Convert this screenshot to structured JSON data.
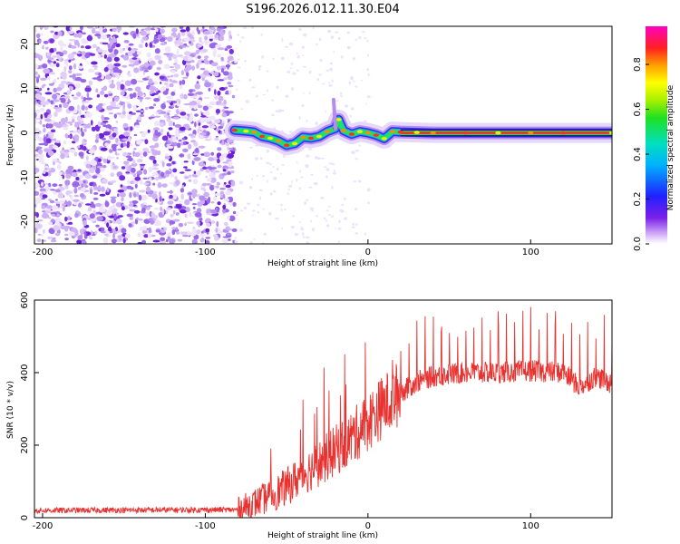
{
  "title": "S196.2026.012.11.30.E04",
  "chart_data": [
    {
      "type": "heatmap",
      "name": "spectrogram",
      "xlabel": "Height of straight line (km)",
      "ylabel": "Frequency (Hz)",
      "xlim": [
        -205,
        150
      ],
      "ylim": [
        -25,
        24
      ],
      "xticks": [
        -200,
        -100,
        0,
        100
      ],
      "yticks": [
        -20,
        -10,
        0,
        10,
        20
      ],
      "xtick_labels": [
        "-200",
        "-100",
        "0",
        "100"
      ],
      "ytick_labels": [
        "-20",
        "-10",
        "0",
        "10",
        "20"
      ],
      "noise_region_x": [
        -205,
        -82
      ],
      "signal_start_x": -82,
      "signal_track": [
        {
          "x": -82,
          "y": 0.6
        },
        {
          "x": -75,
          "y": 0.4
        },
        {
          "x": -70,
          "y": 0.2
        },
        {
          "x": -65,
          "y": -0.8
        },
        {
          "x": -60,
          "y": -1.2
        },
        {
          "x": -55,
          "y": -1.8
        },
        {
          "x": -50,
          "y": -2.8
        },
        {
          "x": -45,
          "y": -2.4
        },
        {
          "x": -40,
          "y": -1.0
        },
        {
          "x": -35,
          "y": -1.2
        },
        {
          "x": -30,
          "y": -0.8
        },
        {
          "x": -25,
          "y": 0.3
        },
        {
          "x": -20,
          "y": 1.0
        },
        {
          "x": -18,
          "y": 3.0
        },
        {
          "x": -15,
          "y": 0.5
        },
        {
          "x": -10,
          "y": -0.3
        },
        {
          "x": -5,
          "y": 0.3
        },
        {
          "x": 0,
          "y": 0.0
        },
        {
          "x": 5,
          "y": -0.5
        },
        {
          "x": 10,
          "y": -1.3
        },
        {
          "x": 15,
          "y": 0.3
        },
        {
          "x": 20,
          "y": 0.2
        },
        {
          "x": 30,
          "y": 0.1
        },
        {
          "x": 40,
          "y": 0.0
        },
        {
          "x": 60,
          "y": 0.0
        },
        {
          "x": 80,
          "y": 0.0
        },
        {
          "x": 100,
          "y": 0.0
        },
        {
          "x": 120,
          "y": 0.0
        },
        {
          "x": 150,
          "y": 0.0
        }
      ],
      "spike": {
        "x": -20,
        "y_top": 7.5
      }
    },
    {
      "type": "colorbar",
      "label": "Normalized spectral amplitude",
      "range": [
        0.0,
        0.97
      ],
      "ticks": [
        "0.0",
        "0.2",
        "0.4",
        "0.6",
        "0.8"
      ],
      "tick_values": [
        0.0,
        0.2,
        0.4,
        0.6,
        0.8
      ],
      "colormap": "rainbow"
    },
    {
      "type": "line",
      "name": "snr",
      "xlabel": "Height of straight line (km)",
      "ylabel": "SNR (10 * v/v)",
      "xlim": [
        -205,
        150
      ],
      "ylim": [
        0,
        600
      ],
      "xticks": [
        -200,
        -100,
        0,
        100
      ],
      "yticks": [
        0,
        200,
        400,
        600
      ],
      "xtick_labels": [
        "-200",
        "-100",
        "0",
        "100"
      ],
      "ytick_labels": [
        "0",
        "200",
        "400",
        "600"
      ],
      "color": "#e8322f",
      "baseline_segments": [
        {
          "x": -205,
          "y": 20
        },
        {
          "x": -80,
          "y": 22
        },
        {
          "x": -70,
          "y": 40
        },
        {
          "x": -60,
          "y": 60
        },
        {
          "x": -50,
          "y": 85
        },
        {
          "x": -40,
          "y": 120
        },
        {
          "x": -30,
          "y": 150
        },
        {
          "x": -20,
          "y": 185
        },
        {
          "x": -10,
          "y": 220
        },
        {
          "x": 0,
          "y": 265
        },
        {
          "x": 10,
          "y": 310
        },
        {
          "x": 20,
          "y": 345
        },
        {
          "x": 30,
          "y": 375
        },
        {
          "x": 40,
          "y": 390
        },
        {
          "x": 60,
          "y": 400
        },
        {
          "x": 80,
          "y": 400
        },
        {
          "x": 100,
          "y": 405
        },
        {
          "x": 120,
          "y": 400
        },
        {
          "x": 130,
          "y": 360
        },
        {
          "x": 140,
          "y": 390
        },
        {
          "x": 150,
          "y": 370
        }
      ]
    }
  ]
}
